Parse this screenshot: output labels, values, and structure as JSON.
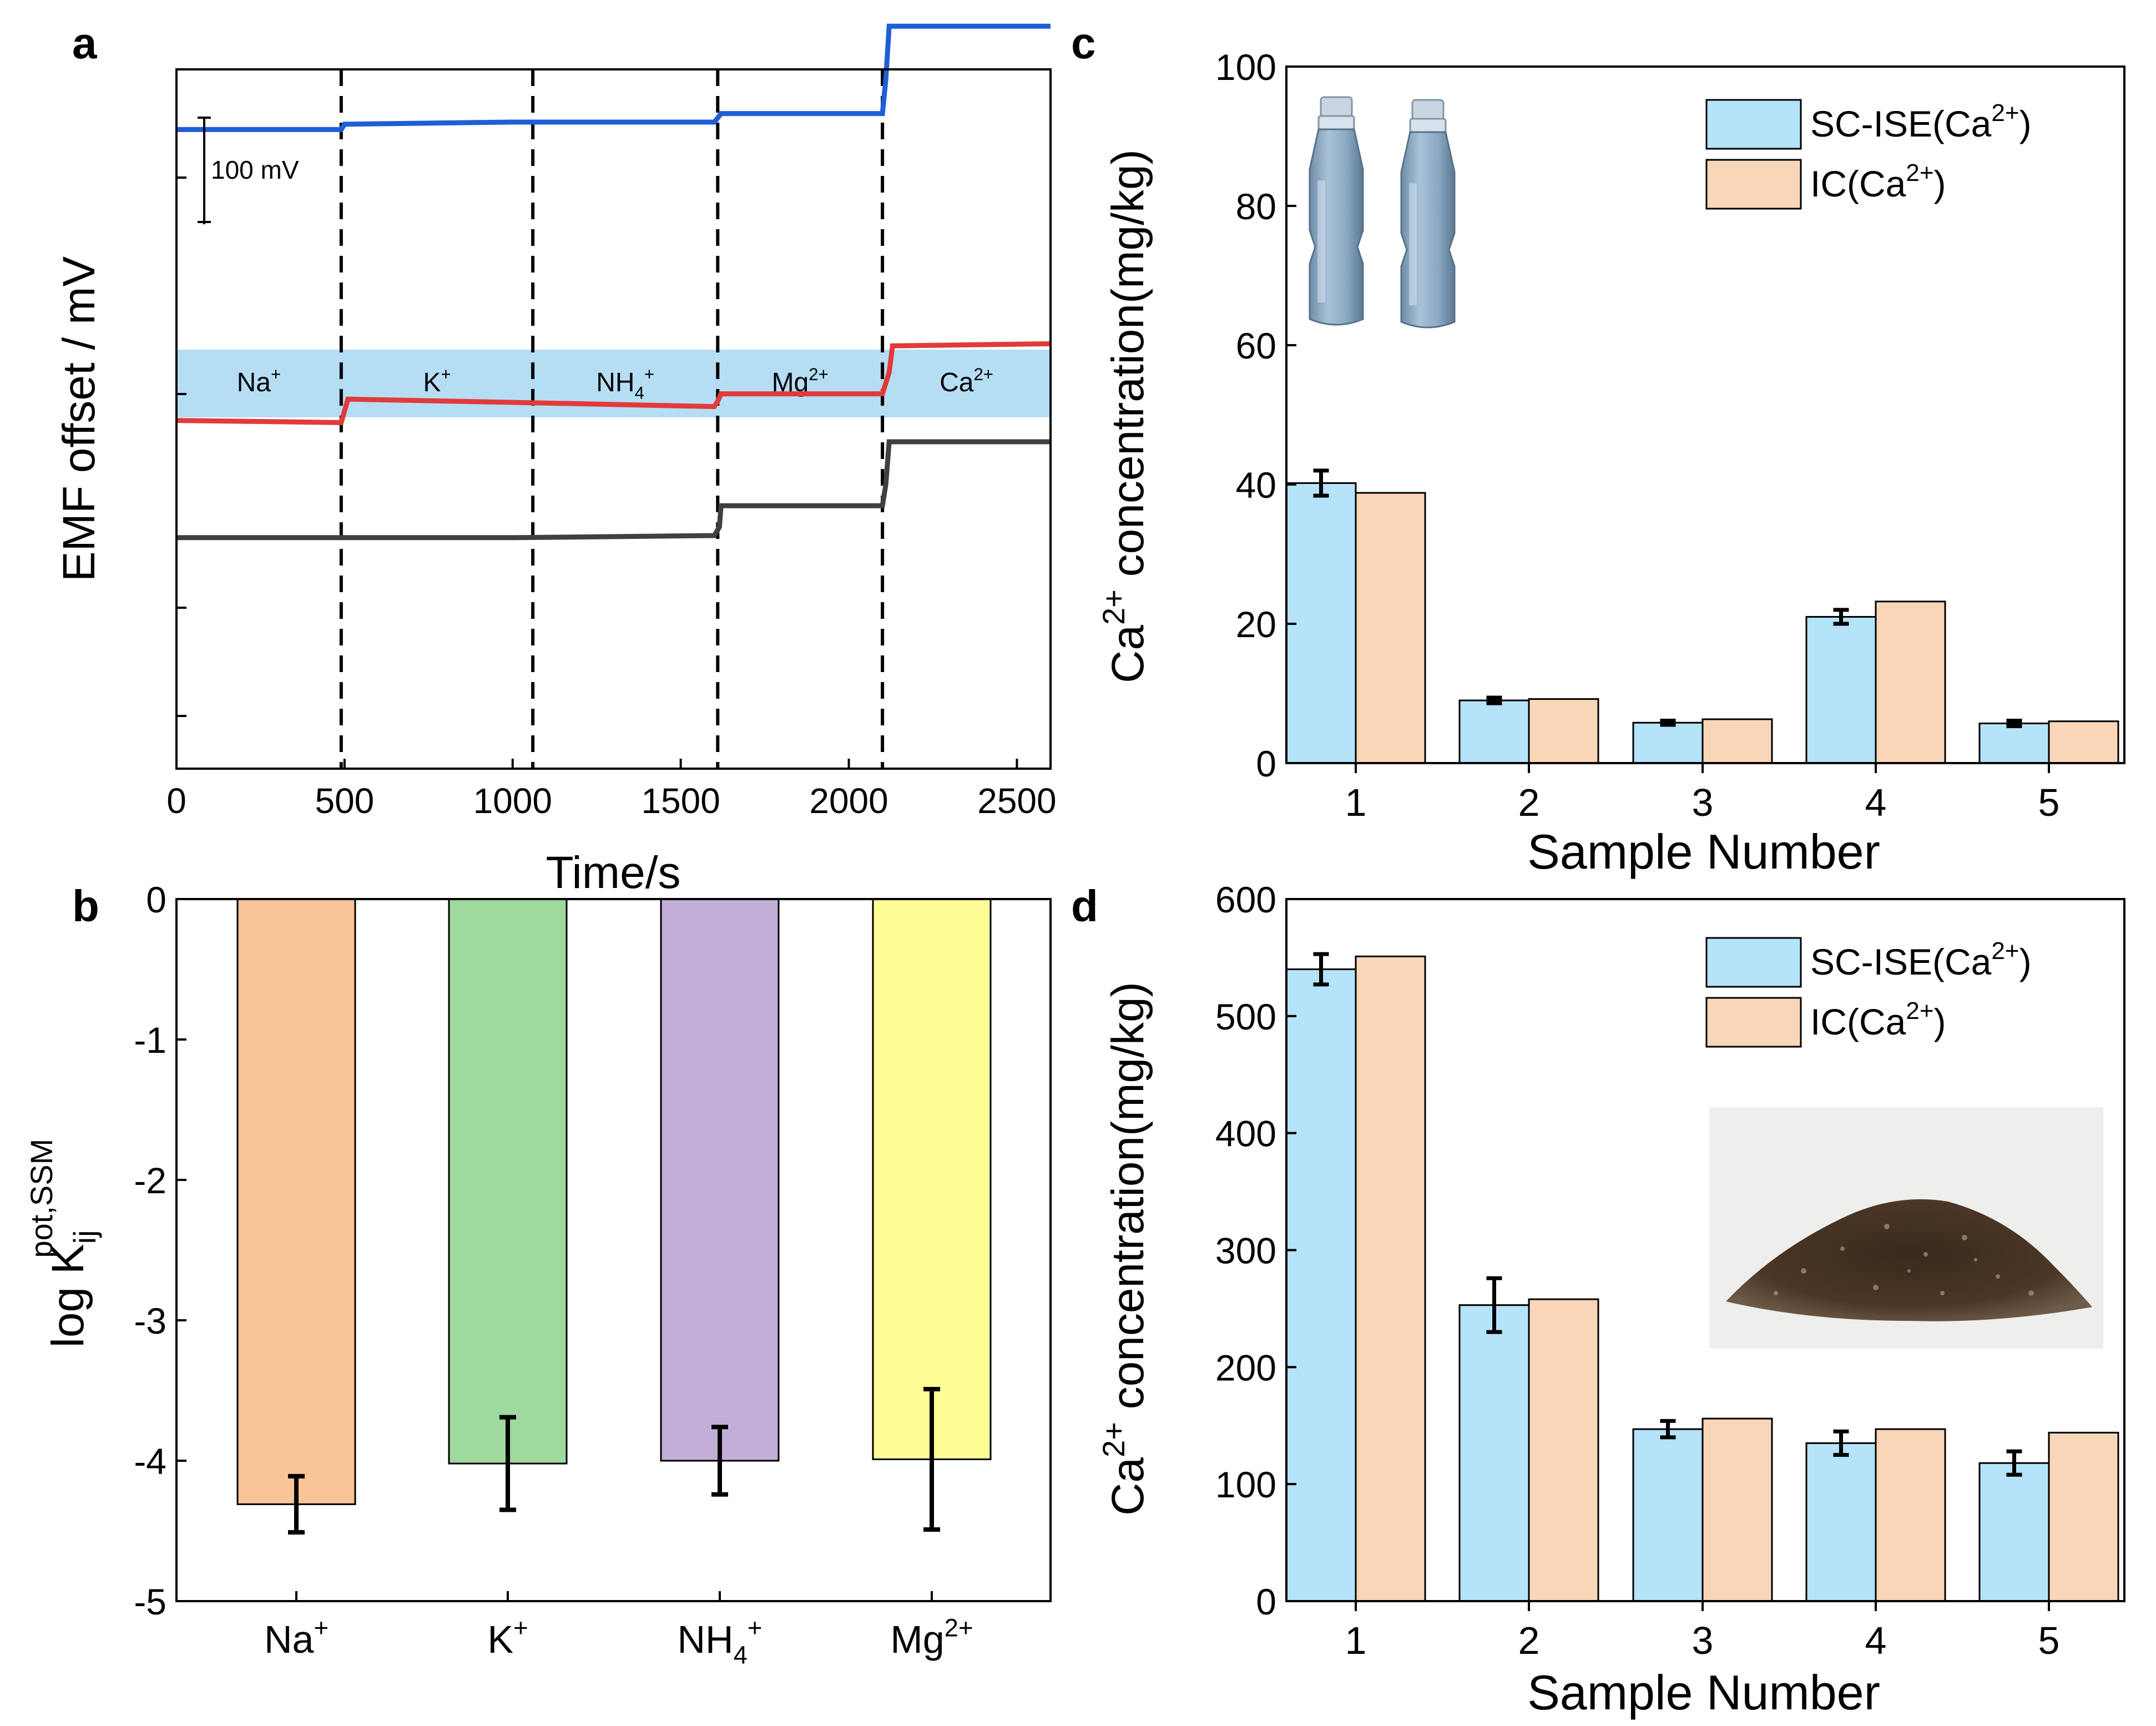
{
  "chart_data": [
    {
      "panel": "a",
      "type": "line",
      "xlabel": "Time/s",
      "ylabel": "EMF offset / mV",
      "xlim": [
        0,
        2600
      ],
      "x_ticks": [
        0,
        500,
        1000,
        1500,
        2000,
        2500
      ],
      "scale_bar_label": "100 mV",
      "scale_bar_mV": 100,
      "ion_segments": [
        {
          "label": "Na",
          "sup": "+",
          "sub": "",
          "x0": 0,
          "x1": 490
        },
        {
          "label": "K",
          "sup": "+",
          "sub": "",
          "x0": 490,
          "x1": 1060
        },
        {
          "label": "NH",
          "sub": "4",
          "sup": "+",
          "x0": 1060,
          "x1": 1610
        },
        {
          "label": "Mg",
          "sup": "2+",
          "sub": "",
          "x0": 1610,
          "x1": 2100
        },
        {
          "label": "Ca",
          "sup": "2+",
          "sub": "",
          "x0": 2100,
          "x1": 2600
        }
      ],
      "dashed_lines_x": [
        490,
        1060,
        1610,
        2100
      ],
      "series": [
        {
          "name": "blue",
          "color": "#1f5fd6",
          "x": [
            0,
            490,
            500,
            1000,
            1600,
            1605,
            1620,
            2100,
            2110,
            2120,
            2600
          ],
          "y": [
            243,
            243,
            248,
            250,
            250,
            252,
            258,
            258,
            290,
            340,
            340
          ]
        },
        {
          "name": "red",
          "color": "#e23a3a",
          "x": [
            0,
            490,
            510,
            1000,
            1600,
            1610,
            1620,
            2100,
            2120,
            2130,
            2600
          ],
          "y": [
            -30,
            -32,
            -10,
            -13,
            -17,
            -12,
            -5,
            -5,
            15,
            40,
            42
          ]
        },
        {
          "name": "black",
          "color": "#404040",
          "x": [
            0,
            490,
            1000,
            1600,
            1615,
            1620,
            2100,
            2110,
            2120,
            2600
          ],
          "y": [
            -140,
            -140,
            -140,
            -138,
            -130,
            -110,
            -110,
            -90,
            -50,
            -50
          ]
        }
      ]
    },
    {
      "panel": "b",
      "type": "bar",
      "ylabel": "log K",
      "ylabel_sub": "ij",
      "ylabel_sup": "pot,SSM",
      "ylim": [
        -5,
        0
      ],
      "y_ticks": [
        0,
        -1,
        -2,
        -3,
        -4,
        -5
      ],
      "categories": [
        {
          "base": "Na",
          "sup": "+",
          "sub": ""
        },
        {
          "base": "K",
          "sup": "+",
          "sub": ""
        },
        {
          "base": "NH",
          "sup": "+",
          "sub": "4"
        },
        {
          "base": "Mg",
          "sup": "2+",
          "sub": ""
        }
      ],
      "values": [
        -4.31,
        -4.02,
        -4.0,
        -3.99
      ],
      "errors": [
        0.2,
        0.33,
        0.24,
        0.5
      ],
      "colors": [
        "#f9c496",
        "#9fd99d",
        "#c2aed6",
        "#fdfc95"
      ]
    },
    {
      "panel": "c",
      "type": "bar",
      "xlabel": "Sample Number",
      "ylabel": "concentration(mg/kg)",
      "ylabel_prefix": "Ca",
      "ylabel_prefix_sup": "2+",
      "ylim": [
        0,
        100
      ],
      "y_ticks": [
        0,
        20,
        40,
        60,
        80,
        100
      ],
      "categories": [
        "1",
        "2",
        "3",
        "4",
        "5"
      ],
      "series": [
        {
          "name": "SC-ISE(Ca",
          "sup": "2+",
          "close": ")",
          "color": "#b4e3fa",
          "values": [
            40.2,
            9.0,
            5.8,
            21.0,
            5.7
          ],
          "errors": [
            1.8,
            0.4,
            0.3,
            1.0,
            0.4
          ]
        },
        {
          "name": "IC(Ca",
          "sup": "2+",
          "close": ")",
          "color": "#fad6b9",
          "values": [
            38.8,
            9.2,
            6.3,
            23.2,
            6.0
          ]
        }
      ],
      "inset_image": "water-bottles"
    },
    {
      "panel": "d",
      "type": "bar",
      "xlabel": "Sample Number",
      "ylabel": "concentration(mg/kg)",
      "ylabel_prefix": "Ca",
      "ylabel_prefix_sup": "2+",
      "ylim": [
        0,
        600
      ],
      "y_ticks": [
        0,
        100,
        200,
        300,
        400,
        500,
        600
      ],
      "categories": [
        "1",
        "2",
        "3",
        "4",
        "5"
      ],
      "series": [
        {
          "name": "SC-ISE(Ca",
          "sup": "2+",
          "close": ")",
          "color": "#b4e3fa",
          "values": [
            540,
            253,
            147,
            135,
            118
          ],
          "errors": [
            13,
            23,
            7,
            10,
            10
          ]
        },
        {
          "name": "IC(Ca",
          "sup": "2+",
          "close": ")",
          "color": "#fad6b9",
          "values": [
            551,
            258,
            156,
            147,
            144
          ]
        }
      ],
      "inset_image": "soil-sample-photo"
    }
  ]
}
